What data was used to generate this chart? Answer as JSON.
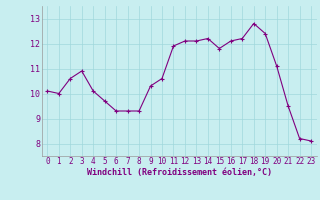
{
  "x": [
    0,
    1,
    2,
    3,
    4,
    5,
    6,
    7,
    8,
    9,
    10,
    11,
    12,
    13,
    14,
    15,
    16,
    17,
    18,
    19,
    20,
    21,
    22,
    23
  ],
  "y": [
    10.1,
    10.0,
    10.6,
    10.9,
    10.1,
    9.7,
    9.3,
    9.3,
    9.3,
    10.3,
    10.6,
    11.9,
    12.1,
    12.1,
    12.2,
    11.8,
    12.1,
    12.2,
    12.8,
    12.4,
    11.1,
    9.5,
    8.2,
    8.1
  ],
  "line_color": "#800080",
  "marker": "+",
  "markersize": 3,
  "linewidth": 0.8,
  "background_color": "#c8eef0",
  "grid_color": "#a0d8dc",
  "xlabel": "Windchill (Refroidissement éolien,°C)",
  "xlabel_color": "#800080",
  "tick_color": "#800080",
  "label_color": "#800080",
  "ylim": [
    7.5,
    13.5
  ],
  "xlim": [
    -0.5,
    23.5
  ],
  "yticks": [
    8,
    9,
    10,
    11,
    12,
    13
  ],
  "xticks": [
    0,
    1,
    2,
    3,
    4,
    5,
    6,
    7,
    8,
    9,
    10,
    11,
    12,
    13,
    14,
    15,
    16,
    17,
    18,
    19,
    20,
    21,
    22,
    23
  ],
  "tick_fontsize": 5.5,
  "xlabel_fontsize": 6.0
}
